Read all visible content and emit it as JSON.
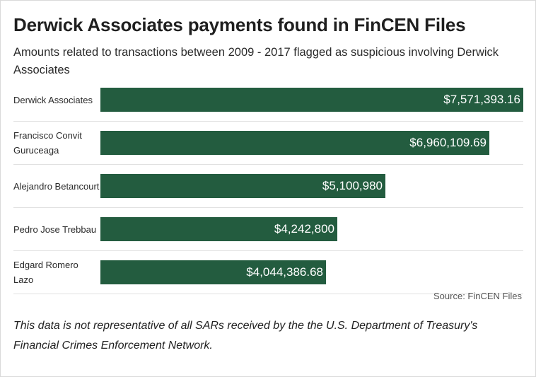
{
  "chart_data": {
    "type": "bar",
    "orientation": "horizontal",
    "title": "Derwick Associates payments found in FinCEN Files",
    "subtitle": "Amounts related to transactions between 2009 - 2017 flagged as suspicious involving Derwick Associates",
    "categories": [
      "Derwick Associates",
      "Francisco Convit Guruceaga",
      "Alejandro Betancourt",
      "Pedro Jose Trebbau",
      "Edgard Romero Lazo"
    ],
    "values": [
      7571393.16,
      6960109.69,
      5100980,
      4242800,
      4044386.68
    ],
    "value_labels": [
      "$7,571,393.16",
      "$6,960,109.69",
      "$5,100,980",
      "$4,242,800",
      "$4,044,386.68"
    ],
    "xlim": [
      0,
      7571393.16
    ],
    "bar_color": "#235c3f",
    "grid": false,
    "legend": "none",
    "source": "Source: FinCEN Files",
    "note": "This data is not representative of all SARs received by the the U.S. Department of Treasury's Financial Crimes Enforcement Network."
  }
}
